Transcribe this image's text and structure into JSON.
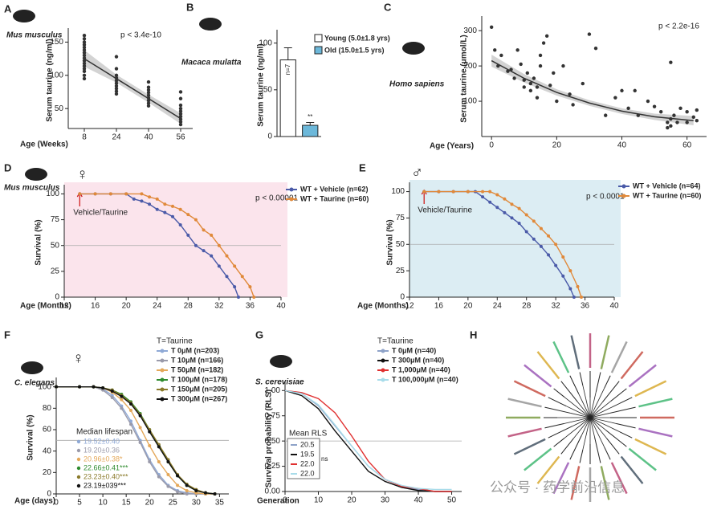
{
  "chart_data": [
    {
      "type": "scatter",
      "panel": "A",
      "species": "Mus musculus",
      "annotation": "p < 3.4e-10",
      "x_label": "Age (Weeks)",
      "y_label": "Serum taurine (ng/ml)",
      "xlim": [
        0,
        62
      ],
      "xticks": [
        8,
        24,
        40,
        56
      ],
      "ylim": [
        20,
        165
      ],
      "yticks": [
        50,
        100,
        150
      ],
      "color": "#333333",
      "x": [
        8,
        8,
        8,
        8,
        8,
        8,
        8,
        8,
        8,
        8,
        8,
        8,
        8,
        8,
        8,
        8,
        24,
        24,
        24,
        24,
        24,
        24,
        24,
        24,
        24,
        24,
        40,
        40,
        40,
        40,
        40,
        40,
        40,
        40,
        40,
        56,
        56,
        56,
        56,
        56,
        56,
        56,
        56,
        56,
        56
      ],
      "values": [
        160,
        155,
        150,
        146,
        142,
        138,
        134,
        130,
        126,
        122,
        118,
        114,
        110,
        106,
        100,
        95,
        128,
        110,
        100,
        96,
        92,
        88,
        84,
        80,
        76,
        72,
        90,
        82,
        78,
        74,
        70,
        66,
        62,
        58,
        54,
        75,
        65,
        55,
        50,
        46,
        42,
        38,
        34,
        30,
        26
      ],
      "fit": {
        "x": [
          8,
          24,
          40,
          56
        ],
        "values": [
          125,
          95,
          65,
          35
        ],
        "lower": [
          113,
          89,
          59,
          27
        ],
        "upper": [
          138,
          101,
          71,
          43
        ]
      },
      "band_color": "#c8c8c8"
    },
    {
      "type": "bar",
      "panel": "B",
      "species": "Macaca mulatta",
      "y_label": "Serum taurine (ng/ml)",
      "categories": [
        "Young (5.0±1.8 yrs)",
        "Old (15.0±1.5 yrs)"
      ],
      "values": [
        82,
        12
      ],
      "errors": [
        13,
        3
      ],
      "colors": [
        "#ffffff",
        "#6cb8da"
      ],
      "bar_labels": [
        "n=7",
        "**"
      ],
      "ylim": [
        0,
        110
      ],
      "yticks": [
        0,
        50,
        100
      ]
    },
    {
      "type": "scatter",
      "panel": "C",
      "species": "Homo sapiens",
      "annotation": "p < 2.2e-16",
      "x_label": "Age (Years)",
      "y_label": "Serum taurine (μmol/L)",
      "xlim": [
        -3,
        66
      ],
      "xticks": [
        0,
        20,
        40,
        60
      ],
      "ylim": [
        0,
        330
      ],
      "yticks": [
        100,
        200,
        300
      ],
      "color": "#333333",
      "x": [
        0,
        1,
        2,
        3,
        5,
        6,
        7,
        8,
        9,
        10,
        10,
        11,
        12,
        12,
        13,
        14,
        14,
        15,
        15,
        16,
        17,
        18,
        19,
        20,
        22,
        24,
        25,
        28,
        30,
        32,
        35,
        38,
        40,
        42,
        44,
        45,
        48,
        50,
        52,
        54,
        54,
        55,
        55,
        55,
        56,
        57,
        58,
        60,
        60,
        62,
        63,
        63
      ],
      "values": [
        310,
        245,
        200,
        230,
        185,
        190,
        165,
        245,
        205,
        160,
        140,
        180,
        130,
        150,
        165,
        110,
        140,
        200,
        230,
        265,
        285,
        145,
        180,
        100,
        200,
        120,
        90,
        150,
        290,
        250,
        60,
        110,
        130,
        80,
        130,
        60,
        100,
        85,
        70,
        40,
        25,
        50,
        30,
        210,
        60,
        40,
        80,
        70,
        40,
        55,
        75,
        45
      ],
      "fit": {
        "x": [
          0,
          10,
          20,
          30,
          40,
          50,
          62
        ],
        "values": [
          215,
          165,
          125,
          95,
          72,
          56,
          45
        ],
        "lower": [
          198,
          153,
          116,
          87,
          64,
          47,
          32
        ],
        "upper": [
          232,
          177,
          134,
          103,
          80,
          65,
          58
        ]
      },
      "band_color": "#c8c8c8"
    },
    {
      "type": "line",
      "panel": "D",
      "species": "Mus musculus",
      "symbol": "♀",
      "annotation": "p < 0.00001",
      "x_label": "Age (Months)",
      "y_label": "Survival (%)",
      "treatment_label": "Vehicle/Taurine",
      "treatment_start": 14,
      "median_line": 50,
      "background": "#fbe4ec",
      "xlim": [
        12,
        40
      ],
      "xticks": [
        12,
        16,
        20,
        24,
        28,
        32,
        36,
        40
      ],
      "ylim": [
        0,
        105
      ],
      "yticks": [
        0,
        25,
        50,
        75,
        100
      ],
      "series": [
        {
          "name": "WT + Vehicle (n=62)",
          "color": "#4a5aa8",
          "x": [
            14,
            16,
            18,
            20,
            21,
            22,
            23,
            24,
            25,
            26,
            27,
            28,
            29,
            30,
            31,
            32,
            33,
            34,
            34.5
          ],
          "values": [
            100,
            100,
            100,
            100,
            95,
            93,
            90,
            85,
            82,
            78,
            70,
            60,
            50,
            45,
            40,
            30,
            20,
            10,
            0
          ]
        },
        {
          "name": "WT + Taurine (n=60)",
          "color": "#e0893a",
          "x": [
            14,
            16,
            18,
            20,
            22,
            23,
            24,
            25,
            26,
            27,
            28,
            29,
            30,
            31,
            32,
            33,
            34,
            35,
            36,
            36.5
          ],
          "values": [
            100,
            100,
            100,
            100,
            100,
            97,
            95,
            90,
            88,
            85,
            80,
            75,
            65,
            60,
            50,
            40,
            30,
            20,
            10,
            0
          ]
        }
      ]
    },
    {
      "type": "line",
      "panel": "E",
      "symbol": "♂",
      "annotation": "p < 0.0001",
      "x_label": "Age (Months)",
      "y_label": "Survival (%)",
      "treatment_label": "Vehicle/Taurine",
      "treatment_start": 14,
      "median_line": 50,
      "background": "#dcedf3",
      "xlim": [
        12,
        40
      ],
      "xticks": [
        12,
        16,
        20,
        24,
        28,
        32,
        36,
        40
      ],
      "ylim": [
        0,
        105
      ],
      "yticks": [
        0,
        25,
        50,
        75,
        100
      ],
      "series": [
        {
          "name": "WT + Vehicle (n=64)",
          "color": "#4a5aa8",
          "x": [
            14,
            16,
            18,
            20,
            21,
            22,
            23,
            24,
            25,
            26,
            27,
            28,
            29,
            30,
            31,
            32,
            33,
            34,
            34.5
          ],
          "values": [
            100,
            100,
            100,
            100,
            100,
            95,
            90,
            85,
            80,
            75,
            70,
            62,
            55,
            48,
            40,
            30,
            20,
            8,
            0
          ]
        },
        {
          "name": "WT + Taurine (n=60)",
          "color": "#e0893a",
          "x": [
            14,
            16,
            18,
            20,
            22,
            23,
            24,
            25,
            26,
            27,
            28,
            29,
            30,
            31,
            32,
            33,
            34,
            35,
            35.5
          ],
          "values": [
            100,
            100,
            100,
            100,
            100,
            100,
            97,
            93,
            88,
            84,
            78,
            72,
            65,
            58,
            50,
            38,
            25,
            10,
            0
          ]
        }
      ]
    },
    {
      "type": "line",
      "panel": "F",
      "species": "C. elegans",
      "symbol": "♀",
      "x_label": "Age (days)",
      "y_label": "Survival (%)",
      "legend_title": "T=Taurine",
      "median_title": "Median lifespan",
      "median_line": 50,
      "xlim": [
        0,
        37
      ],
      "xticks": [
        0,
        5,
        10,
        15,
        20,
        25,
        30,
        35
      ],
      "ylim": [
        0,
        105
      ],
      "yticks": [
        0,
        20,
        40,
        60,
        80,
        100
      ],
      "series": [
        {
          "name": "T 0μM (n=203)",
          "color": "#8fa9d6",
          "median": "19.52±0.40",
          "x": [
            0,
            5,
            8,
            10,
            12,
            14,
            16,
            18,
            20,
            22,
            24,
            26,
            28,
            30,
            32,
            34
          ],
          "values": [
            100,
            100,
            100,
            98,
            92,
            82,
            68,
            50,
            32,
            18,
            8,
            3,
            1,
            0,
            0,
            0
          ]
        },
        {
          "name": "T 10μM (n=166)",
          "color": "#9a9aaa",
          "median": "19.20±0.36",
          "x": [
            0,
            5,
            8,
            10,
            12,
            14,
            16,
            18,
            20,
            22,
            24,
            26,
            28,
            30,
            32,
            34
          ],
          "values": [
            100,
            100,
            100,
            97,
            90,
            80,
            65,
            48,
            30,
            16,
            7,
            2,
            0,
            0,
            0,
            0
          ]
        },
        {
          "name": "T 50μM (n=182)",
          "color": "#e4a85a",
          "median": "20.96±0.38*",
          "x": [
            0,
            5,
            8,
            10,
            12,
            14,
            16,
            18,
            20,
            22,
            24,
            26,
            28,
            30,
            32,
            34
          ],
          "values": [
            100,
            100,
            100,
            99,
            95,
            88,
            78,
            62,
            45,
            30,
            18,
            8,
            3,
            1,
            0,
            0
          ]
        },
        {
          "name": "T 100μM (n=178)",
          "color": "#2e8b2e",
          "median": "22.66±0.41***",
          "x": [
            0,
            5,
            8,
            10,
            12,
            14,
            16,
            18,
            20,
            22,
            24,
            26,
            28,
            30,
            32,
            34
          ],
          "values": [
            100,
            100,
            100,
            99,
            97,
            93,
            86,
            75,
            60,
            45,
            30,
            17,
            8,
            3,
            1,
            0
          ]
        },
        {
          "name": "T 150μM (n=205)",
          "color": "#8a7a2a",
          "median": "23.23±0.40***",
          "x": [
            0,
            5,
            8,
            10,
            12,
            14,
            16,
            18,
            20,
            22,
            24,
            26,
            28,
            30,
            32,
            34
          ],
          "values": [
            100,
            100,
            100,
            99,
            97,
            92,
            85,
            74,
            60,
            46,
            32,
            18,
            9,
            4,
            1,
            0
          ]
        },
        {
          "name": "T 300μM (n=267)",
          "color": "#111111",
          "median": "23.19±039***",
          "x": [
            0,
            5,
            8,
            10,
            12,
            14,
            16,
            18,
            20,
            22,
            24,
            26,
            28,
            30,
            32,
            34
          ],
          "values": [
            100,
            100,
            100,
            99,
            96,
            91,
            84,
            73,
            58,
            44,
            30,
            17,
            8,
            3,
            1,
            0
          ]
        }
      ]
    },
    {
      "type": "line",
      "panel": "G",
      "species": "S. cerevisiae",
      "x_label": "Generation",
      "y_label": "Survival probability (RLS)",
      "legend_title": "T=Taurine",
      "mean_title": "Mean RLS",
      "ns": "ns",
      "median_line": 0.5,
      "xlim": [
        0,
        53
      ],
      "xticks": [
        0,
        10,
        20,
        30,
        40,
        50
      ],
      "ylim": [
        0,
        1.05
      ],
      "yticks": [
        {
          "value": 0,
          "label": "0.00"
        },
        {
          "value": 0.25,
          "label": "0.25"
        },
        {
          "value": 0.5,
          "label": "0.50"
        },
        {
          "value": 0.75,
          "label": "0.75"
        },
        {
          "value": 1,
          "label": "1.00"
        }
      ],
      "series": [
        {
          "name": "T 0μM (n=40)",
          "color": "#8ea2c8",
          "mean": "20.5",
          "x": [
            0,
            5,
            10,
            15,
            20,
            25,
            30,
            35,
            40,
            45,
            50
          ],
          "values": [
            1,
            0.97,
            0.85,
            0.65,
            0.45,
            0.25,
            0.12,
            0.05,
            0.02,
            0,
            0
          ]
        },
        {
          "name": "T 300μM (n=40)",
          "color": "#111111",
          "mean": "19.5",
          "x": [
            0,
            5,
            10,
            15,
            20,
            25,
            30,
            35,
            40,
            45,
            50
          ],
          "values": [
            1,
            0.95,
            0.82,
            0.6,
            0.4,
            0.2,
            0.1,
            0.04,
            0.01,
            0,
            0
          ]
        },
        {
          "name": "T 1,000μM (n=40)",
          "color": "#e03030",
          "mean": "22.0",
          "x": [
            0,
            5,
            10,
            15,
            20,
            25,
            30,
            35,
            40,
            45,
            50
          ],
          "values": [
            1,
            0.98,
            0.92,
            0.78,
            0.55,
            0.3,
            0.12,
            0.05,
            0.03,
            0,
            0
          ]
        },
        {
          "name": "T 100,000μM (n=40)",
          "color": "#a8dcea",
          "mean": "22.0",
          "x": [
            0,
            5,
            10,
            15,
            20,
            25,
            30,
            35,
            40,
            45,
            50
          ],
          "values": [
            1,
            0.97,
            0.86,
            0.66,
            0.45,
            0.25,
            0.12,
            0.06,
            0.03,
            0.02,
            0.02
          ]
        }
      ]
    }
  ],
  "panel_h": {
    "panel": "H"
  },
  "watermark": "公众号 · 药学前沿信息"
}
